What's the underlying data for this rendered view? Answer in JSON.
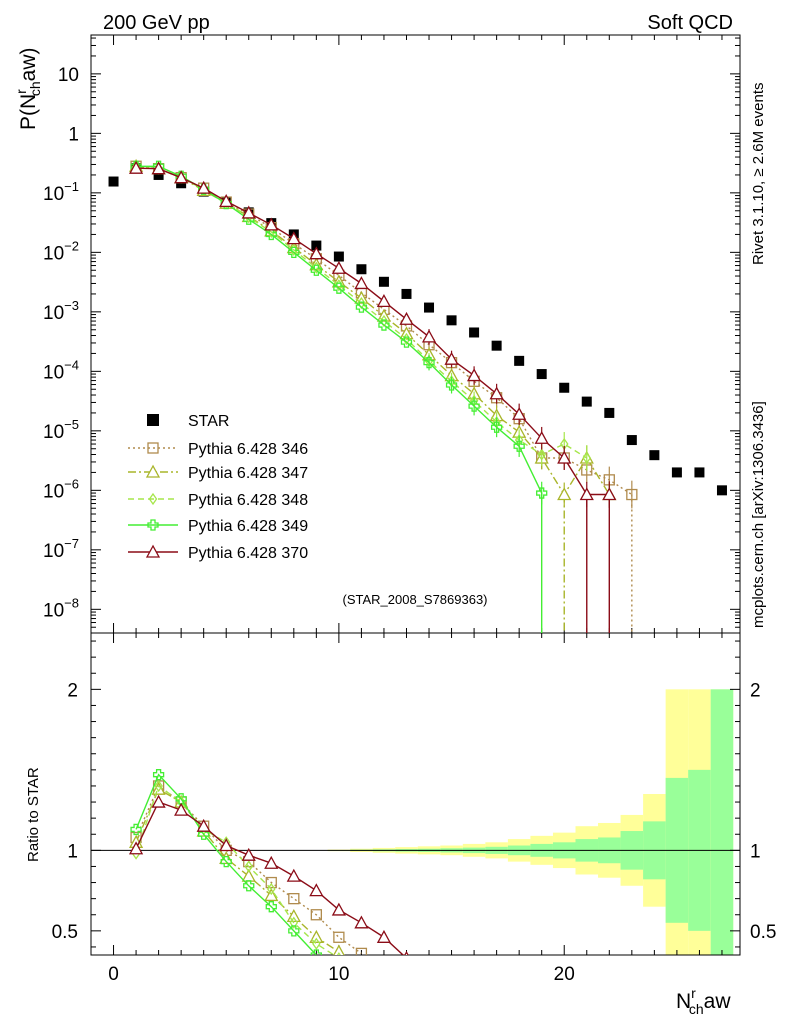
{
  "header": {
    "left": "200 GeV pp",
    "right": "Soft QCD"
  },
  "side_text": {
    "rivet": "Rivet 3.1.10, ≥ 2.6M events",
    "mcplots": "mcplots.cern.ch [arXiv:1306.3436]"
  },
  "analysis_label": "(STAR_2008_S7869363)",
  "colors": {
    "star": "#000000",
    "p346": "#b08b4d",
    "p347": "#a9b52a",
    "p348": "#a6e64a",
    "p349": "#44ee33",
    "p370": "#8b0c17",
    "band_outer": "#ffff99",
    "band_inner": "#99ff99"
  },
  "chart_data": [
    {
      "type": "scatter",
      "yscale": "log",
      "ylabel_main": "P(N",
      "ylabel_sup": "r",
      "ylabel_sub": "ch",
      "ylabel_tail": "aw)",
      "xlim": [
        -1,
        27.8
      ],
      "ylim": [
        4e-09,
        45
      ],
      "yticks": [
        {
          "value": 10,
          "mant": "10",
          "exp": ""
        },
        {
          "value": 1,
          "mant": "1",
          "exp": ""
        },
        {
          "value": 0.1,
          "mant": "10",
          "exp": "−1"
        },
        {
          "value": 0.01,
          "mant": "10",
          "exp": "−2"
        },
        {
          "value": 0.001,
          "mant": "10",
          "exp": "−3"
        },
        {
          "value": 0.0001,
          "mant": "10",
          "exp": "−4"
        },
        {
          "value": 1e-05,
          "mant": "10",
          "exp": "−5"
        },
        {
          "value": 1e-06,
          "mant": "10",
          "exp": "−6"
        },
        {
          "value": 1e-07,
          "mant": "10",
          "exp": "−7"
        },
        {
          "value": 1e-08,
          "mant": "10",
          "exp": "−8"
        }
      ],
      "series": [
        {
          "key": "star",
          "name": "STAR",
          "marker": "square",
          "line": "none",
          "x": [
            0,
            1,
            2,
            3,
            4,
            5,
            6,
            7,
            8,
            9,
            10,
            11,
            12,
            13,
            14,
            15,
            16,
            17,
            18,
            19,
            20,
            21,
            22,
            23,
            24,
            25,
            26,
            27
          ],
          "y": [
            0.155,
            0.26,
            0.2,
            0.145,
            0.105,
            0.07,
            0.047,
            0.031,
            0.02,
            0.013,
            0.0085,
            0.0052,
            0.0032,
            0.002,
            0.00118,
            0.00072,
            0.00045,
            0.00027,
            0.00015,
            9e-05,
            5.3e-05,
            3.1e-05,
            2e-05,
            7e-06,
            3.9e-06,
            2e-06,
            2e-06,
            1e-06
          ]
        },
        {
          "key": "p346",
          "name": "Pythia 6.428 346",
          "marker": "open-square",
          "line": "dotted",
          "x": [
            1,
            2,
            3,
            4,
            5,
            6,
            7,
            8,
            9,
            10,
            11,
            12,
            13,
            14,
            15,
            16,
            17,
            18,
            19,
            20,
            21,
            22,
            23
          ],
          "y": [
            0.28,
            0.255,
            0.18,
            0.12,
            0.07,
            0.044,
            0.026,
            0.014,
            0.0078,
            0.0041,
            0.0021,
            0.0011,
            0.00058,
            0.00028,
            0.00014,
            6.8e-05,
            3.6e-05,
            1.6e-05,
            3.5e-06,
            3.5e-06,
            2.2e-06,
            1.5e-06,
            8.5e-07
          ],
          "drop_x": 23
        },
        {
          "key": "p347",
          "name": "Pythia 6.428 347",
          "marker": "open-triangle",
          "line": "dashdot",
          "x": [
            1,
            2,
            3,
            4,
            5,
            6,
            7,
            8,
            9,
            10,
            11,
            12,
            13,
            14,
            15,
            16,
            17,
            18,
            19,
            20,
            21,
            22
          ],
          "y": [
            0.28,
            0.255,
            0.18,
            0.11,
            0.067,
            0.04,
            0.023,
            0.012,
            0.0062,
            0.0032,
            0.0017,
            0.00085,
            0.00043,
            0.00019,
            8.5e-05,
            4.2e-05,
            1.8e-05,
            9.5e-06,
            3.5e-06,
            8.5e-07,
            3.5e-06,
            8.5e-07
          ],
          "drop_x": 20
        },
        {
          "key": "p348",
          "name": "Pythia 6.428 348",
          "marker": "open-diamond",
          "line": "dashed",
          "x": [
            1,
            2,
            3,
            4,
            5,
            6,
            7,
            8,
            9,
            10,
            11,
            12,
            13,
            14,
            15,
            16,
            17,
            18,
            19,
            20,
            21
          ],
          "y": [
            0.27,
            0.255,
            0.18,
            0.115,
            0.07,
            0.039,
            0.022,
            0.011,
            0.0055,
            0.0028,
            0.0014,
            0.0007,
            0.00035,
            0.00015,
            6.8e-05,
            3.2e-05,
            1.4e-05,
            7e-06,
            4e-06,
            6e-06,
            3.5e-06
          ]
        },
        {
          "key": "p349",
          "name": "Pythia 6.428 349",
          "marker": "open-cross",
          "line": "solid",
          "x": [
            1,
            2,
            3,
            4,
            5,
            6,
            7,
            8,
            9,
            10,
            11,
            12,
            13,
            14,
            15,
            16,
            17,
            18,
            19
          ],
          "y": [
            0.28,
            0.28,
            0.19,
            0.115,
            0.066,
            0.036,
            0.02,
            0.01,
            0.005,
            0.0025,
            0.0012,
            0.0006,
            0.00031,
            0.00014,
            5.9e-05,
            2.6e-05,
            1.15e-05,
            5.5e-06,
            9e-07
          ],
          "drop_x": 19
        },
        {
          "key": "p370",
          "name": "Pythia 6.428 370",
          "marker": "open-triangle",
          "line": "solid",
          "x": [
            1,
            2,
            3,
            4,
            5,
            6,
            7,
            8,
            9,
            10,
            11,
            12,
            13,
            14,
            15,
            16,
            17,
            18,
            19,
            20,
            21,
            22
          ],
          "y": [
            0.26,
            0.255,
            0.18,
            0.12,
            0.072,
            0.046,
            0.029,
            0.017,
            0.0095,
            0.0054,
            0.003,
            0.0015,
            0.00075,
            0.00038,
            0.00016,
            8.5e-05,
            4.2e-05,
            1.9e-05,
            7.5e-06,
            3.5e-06,
            8.5e-07,
            8.5e-07
          ],
          "drop_x": [
            21,
            22
          ]
        }
      ]
    },
    {
      "type": "line",
      "ylabel": "Ratio to STAR",
      "xlabel_main": "N",
      "xlabel_sup": "r",
      "xlabel_sub": "ch",
      "xlabel_tail": "aw",
      "xlim": [
        -1,
        27.8
      ],
      "ylim": [
        0.35,
        2.35
      ],
      "xticks": [
        0,
        10,
        20
      ],
      "yticks": [
        0.5,
        1,
        2
      ],
      "yticks_labels": [
        "0.5",
        "1",
        "2"
      ],
      "band_x": [
        10,
        11,
        12,
        13,
        14,
        15,
        16,
        17,
        18,
        19,
        20,
        21,
        22,
        23,
        24,
        25,
        26,
        27
      ],
      "band_outer": [
        0.005,
        0.01,
        0.015,
        0.02,
        0.025,
        0.03,
        0.04,
        0.05,
        0.07,
        0.09,
        0.11,
        0.15,
        0.17,
        0.22,
        0.35,
        1.0,
        1.0,
        1.0
      ],
      "band_inner": [
        0.002,
        0.004,
        0.006,
        0.008,
        0.01,
        0.013,
        0.017,
        0.022,
        0.03,
        0.04,
        0.05,
        0.07,
        0.08,
        0.12,
        0.18,
        0.45,
        0.5,
        1.0
      ],
      "series": [
        {
          "key": "p346",
          "x": [
            1,
            2,
            3,
            4,
            5,
            6,
            7,
            8,
            9,
            10,
            11
          ],
          "y": [
            1.08,
            1.4,
            1.3,
            1.15,
            1.0,
            0.93,
            0.8,
            0.7,
            0.6,
            0.46,
            0.36
          ]
        },
        {
          "key": "p347",
          "x": [
            1,
            2,
            3,
            4,
            5,
            6,
            7,
            8,
            9,
            10
          ],
          "y": [
            1.05,
            1.38,
            1.3,
            1.12,
            0.95,
            0.84,
            0.72,
            0.59,
            0.46,
            0.37
          ]
        },
        {
          "key": "p348",
          "x": [
            1,
            2,
            3,
            4,
            5,
            6,
            7,
            8,
            9,
            10
          ],
          "y": [
            0.98,
            1.4,
            1.3,
            1.13,
            1.05,
            0.9,
            0.76,
            0.55,
            0.42,
            0.33
          ]
        },
        {
          "key": "p349",
          "x": [
            1,
            2,
            3,
            4,
            5,
            6,
            7,
            8,
            9
          ],
          "y": [
            1.13,
            1.47,
            1.32,
            1.1,
            0.93,
            0.78,
            0.65,
            0.5,
            0.35
          ]
        },
        {
          "key": "p370",
          "x": [
            1,
            2,
            3,
            4,
            5,
            6,
            7,
            8,
            9,
            10,
            11,
            12,
            13
          ],
          "y": [
            1.01,
            1.3,
            1.25,
            1.15,
            1.03,
            0.97,
            0.92,
            0.84,
            0.75,
            0.63,
            0.55,
            0.46,
            0.33
          ]
        }
      ]
    }
  ]
}
